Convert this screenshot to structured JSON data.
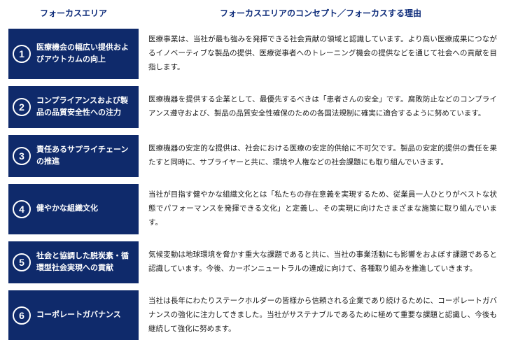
{
  "header": {
    "left": "フォーカスエリア",
    "right": "フォーカスエリアのコンセプト／フォーカスする理由"
  },
  "rows": [
    {
      "num": "1",
      "title": "医療機会の幅広い提供およびアウトカムの向上",
      "desc": "医療事業は、当社が最も強みを発揮できる社会貢献の領域と認識しています。より高い医療成果につながるイノベーティブな製品の提供、医療従事者へのトレーニング機会の提供などを通じて社会への貢献を目指します。"
    },
    {
      "num": "2",
      "title": "コンプライアンスおよび製品の品質安全性への注力",
      "desc": "医療機器を提供する企業として、最優先するべきは「患者さんの安全」です。腐敗防止などのコンプライアンス遵守および、製品の品質安全性確保のための各国法規制に確実に適合するように努めています。"
    },
    {
      "num": "3",
      "title": "責任あるサプライチェーンの推進",
      "desc": "医療機器の安定的な提供は、社会における医療の安定的供給に不可欠です。製品の安定的提供の責任を果たすと同時に、サプライヤーと共に、環境や人権などの社会課題にも取り組んでいきます。"
    },
    {
      "num": "4",
      "title": "健やかな組織文化",
      "desc": "当社が目指す健やかな組織文化とは「私たちの存在意義を実現するため、従業員一人ひとりがベストな状態でパフォーマンスを発揮できる文化」と定義し、その実現に向けたさまざまな施策に取り組んでいます。"
    },
    {
      "num": "5",
      "title": "社会と協調した脱炭素・循環型社会実現への貢献",
      "desc": "気候変動は地球環境を脅かす重大な課題であると共に、当社の事業活動にも影響をおよぼす課題であると認識しています。今後、カーボンニュートラルの達成に向けて、各種取り組みを推進していきます。"
    },
    {
      "num": "6",
      "title": "コーポレートガバナンス",
      "desc": "当社は長年にわたりステークホルダーの皆様から信頼される企業であり続けるために、コーポレートガバナンスの強化に注力してきました。当社がサステナブルであるために極めて重要な課題と認識し、今後も継続して強化に努めます。"
    }
  ],
  "colors": {
    "header_text": "#0d2b7a",
    "cell_bg": "#0f2a6b",
    "cell_text": "#ffffff",
    "body_text": "#1a1a1a",
    "background": "#ffffff"
  }
}
